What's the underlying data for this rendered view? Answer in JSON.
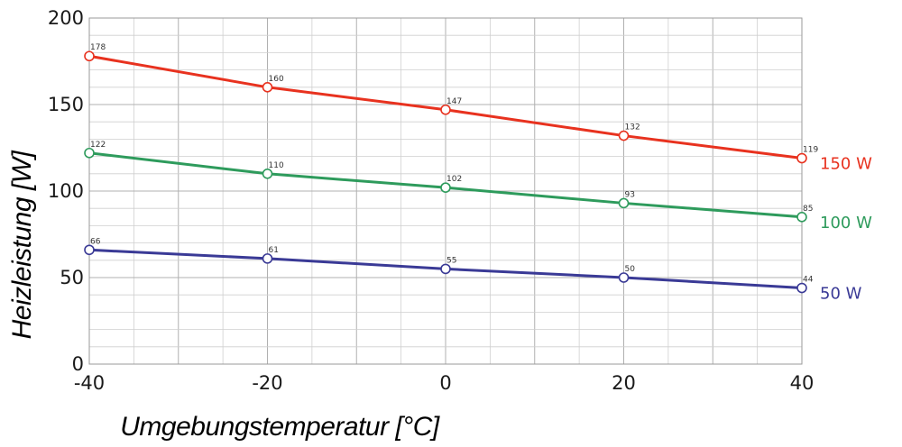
{
  "chart_data": {
    "type": "line",
    "title": "",
    "xlabel": "Umgebungstemperatur [°C]",
    "ylabel": "Heizleistung [W]",
    "x": [
      -40,
      -20,
      0,
      20,
      40
    ],
    "xlim": [
      -40,
      40
    ],
    "ylim": [
      0,
      200
    ],
    "x_ticks": [
      "-40",
      "-20",
      "0",
      "20",
      "40"
    ],
    "y_ticks": [
      "0",
      "50",
      "100",
      "150",
      "200"
    ],
    "grid": true,
    "legend": "inline-right",
    "series": [
      {
        "name": "150 W",
        "color": "#e8321f",
        "values": [
          178,
          160,
          147,
          132,
          119
        ]
      },
      {
        "name": "100 W",
        "color": "#2e9b5c",
        "values": [
          122,
          110,
          102,
          93,
          85
        ]
      },
      {
        "name": "50 W",
        "color": "#3a3a96",
        "values": [
          66,
          61,
          55,
          50,
          44
        ]
      }
    ]
  }
}
